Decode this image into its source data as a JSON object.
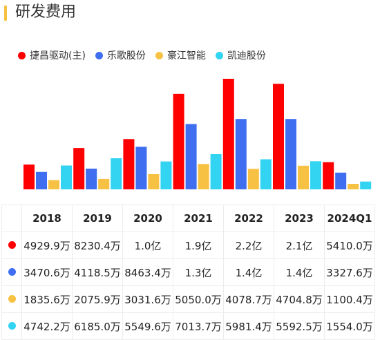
{
  "title": "研发费用",
  "colors": {
    "accent_bar": "#f7c244",
    "series": [
      "#ff0000",
      "#3f6ef0",
      "#f7c244",
      "#33d3f2"
    ]
  },
  "chart_data": {
    "type": "bar",
    "categories": [
      "2018",
      "2019",
      "2020",
      "2021",
      "2022",
      "2023",
      "2024Q1"
    ],
    "unit": "万",
    "series": [
      {
        "name": "捷昌驱动(主)",
        "values": [
          4929.9,
          8230.4,
          10000,
          19000,
          22000,
          21000,
          5410.0
        ],
        "labels": [
          "4929.9万",
          "8230.4万",
          "1.0亿",
          "1.9亿",
          "2.2亿",
          "2.1亿",
          "5410.0万"
        ]
      },
      {
        "name": "乐歌股份",
        "values": [
          3470.6,
          4118.5,
          8463.4,
          13000,
          14000,
          14000,
          3327.6
        ],
        "labels": [
          "3470.6万",
          "4118.5万",
          "8463.4万",
          "1.3亿",
          "1.4亿",
          "1.4亿",
          "3327.6万"
        ]
      },
      {
        "name": "豪江智能",
        "values": [
          1835.6,
          2075.9,
          3031.6,
          5050.0,
          4078.7,
          4704.8,
          1100.4
        ],
        "labels": [
          "1835.6万",
          "2075.9万",
          "3031.6万",
          "5050.0万",
          "4078.7万",
          "4704.8万",
          "1100.4万"
        ]
      },
      {
        "name": "凯迪股份",
        "values": [
          4742.2,
          6185.0,
          5549.6,
          7013.7,
          5981.4,
          5592.5,
          1554.0
        ],
        "labels": [
          "4742.2万",
          "6185.0万",
          "5549.6万",
          "7013.7万",
          "5981.4万",
          "5592.5万",
          "1554.0万"
        ]
      }
    ],
    "ylim": [
      0,
      22000
    ],
    "grid": false,
    "legend_position": "top-left"
  }
}
